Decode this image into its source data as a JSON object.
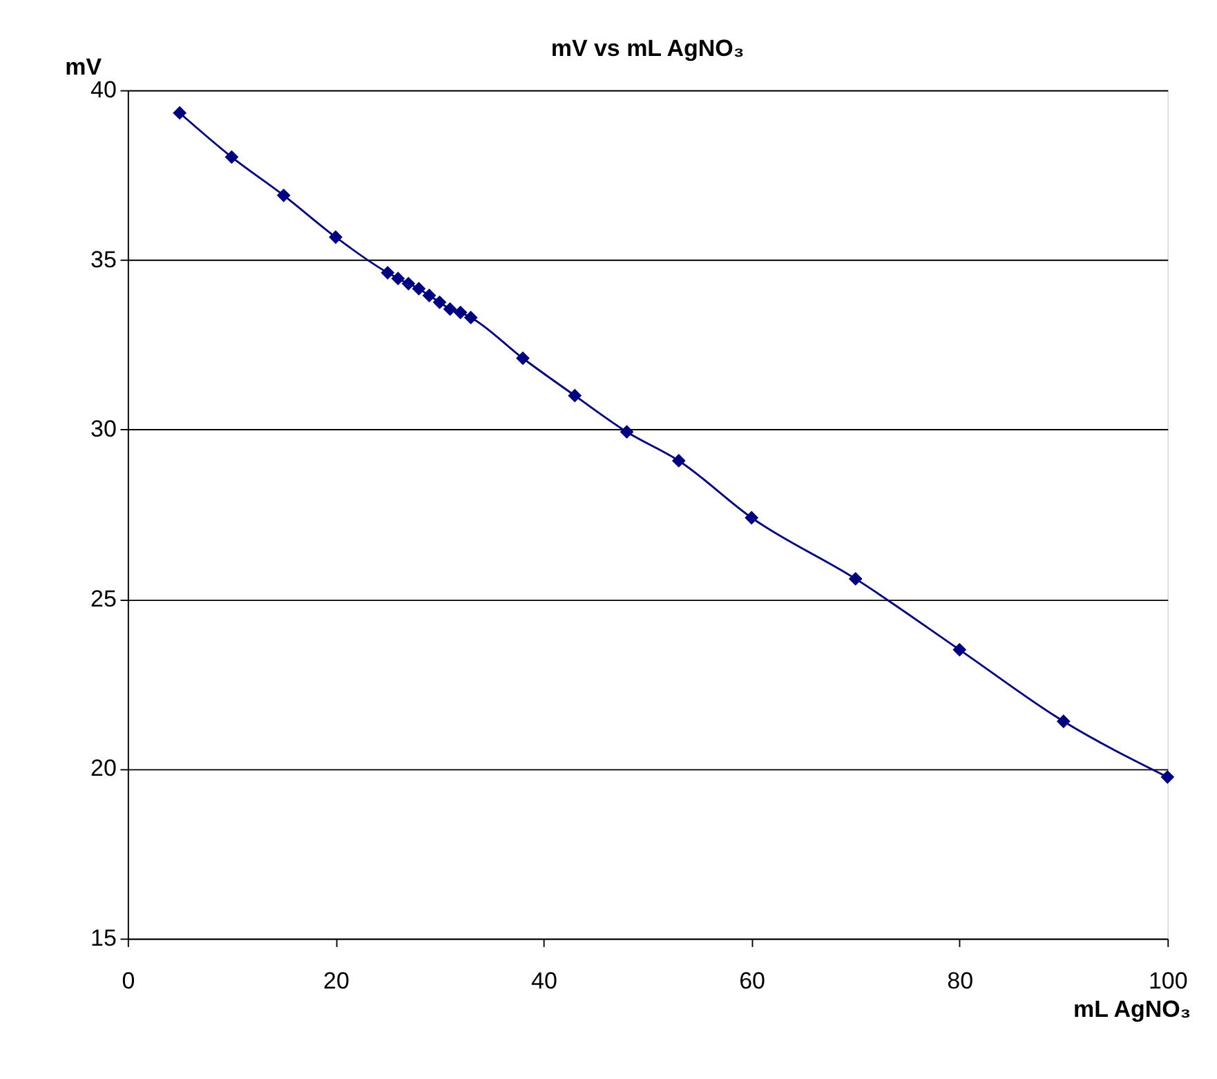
{
  "chart_data": {
    "type": "line",
    "title": "mV vs  mL AgNO₃",
    "xlabel": "mL AgNO₃",
    "ylabel": "mV",
    "x": [
      5,
      10,
      15,
      20,
      25,
      26,
      27,
      28,
      29,
      30,
      31,
      32,
      33,
      38,
      43,
      48,
      53,
      60,
      70,
      80,
      90,
      100
    ],
    "series": [
      {
        "color": "#000080",
        "values": [
          39.33,
          38.03,
          36.9,
          35.67,
          34.62,
          34.45,
          34.3,
          34.15,
          33.95,
          33.75,
          33.55,
          33.45,
          33.3,
          32.1,
          31.0,
          29.93,
          29.08,
          27.4,
          25.6,
          23.51,
          21.4,
          19.76
        ]
      }
    ],
    "xlim": [
      0,
      100
    ],
    "xticks": [
      0,
      20,
      40,
      60,
      80,
      100
    ],
    "ylim": [
      15,
      40
    ],
    "yticks": [
      15,
      20,
      25,
      30,
      35,
      40
    ],
    "grid": "y",
    "marker": "diamond",
    "line_style": "solid"
  }
}
